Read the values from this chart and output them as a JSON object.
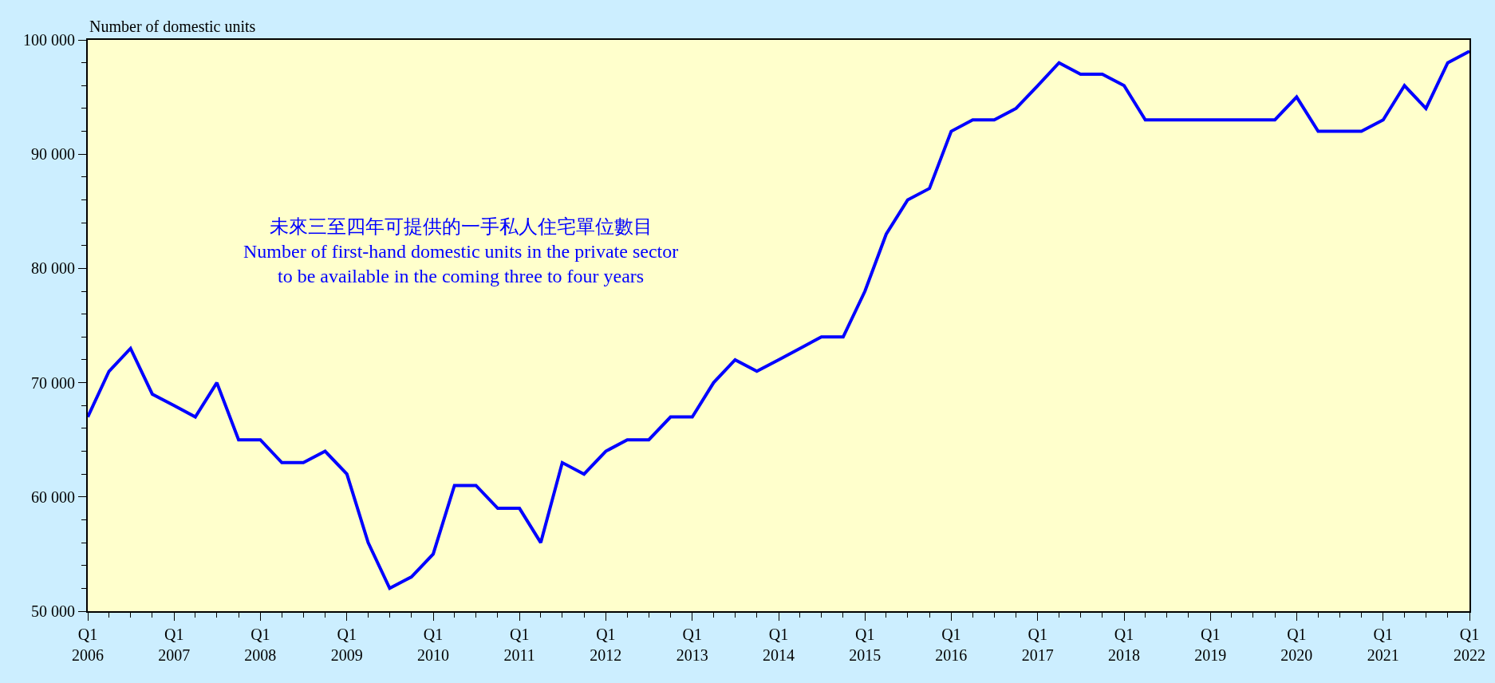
{
  "chart_data": {
    "type": "line",
    "ylabel": "Number of domestic units",
    "annotations": [
      "未來三至四年可提供的一手私人住宅單位數目\nNumber of first-hand domestic units in the private sector\nto be available in the coming three to four years"
    ],
    "x": [
      "2006-01",
      "2006-04",
      "2006-07",
      "2006-10",
      "2007-01",
      "2007-04",
      "2007-07",
      "2007-10",
      "2008-01",
      "2008-04",
      "2008-07",
      "2008-10",
      "2009-01",
      "2009-04",
      "2009-07",
      "2009-10",
      "2010-01",
      "2010-04",
      "2010-07",
      "2010-10",
      "2011-01",
      "2011-04",
      "2011-07",
      "2011-10",
      "2012-01",
      "2012-04",
      "2012-07",
      "2012-10",
      "2013-01",
      "2013-04",
      "2013-07",
      "2013-10",
      "2014-01",
      "2014-04",
      "2014-07",
      "2014-10",
      "2015-01",
      "2015-04",
      "2015-07",
      "2015-10",
      "2016-01",
      "2016-04",
      "2016-07",
      "2016-10",
      "2017-01",
      "2017-04",
      "2017-07",
      "2017-10",
      "2018-01",
      "2018-04",
      "2018-07",
      "2018-10",
      "2019-01",
      "2019-04",
      "2019-07",
      "2019-10",
      "2020-01",
      "2020-04",
      "2020-07",
      "2020-10",
      "2021-01",
      "2021-04",
      "2021-07",
      "2021-10",
      "2022-01"
    ],
    "series": [
      {
        "color": "#0000ff",
        "values": [
          67000,
          71000,
          73000,
          69000,
          68000,
          67000,
          70000,
          65000,
          65000,
          63000,
          63000,
          64000,
          62000,
          56000,
          52000,
          53000,
          55000,
          61000,
          61000,
          59000,
          59000,
          56000,
          63000,
          62000,
          64000,
          65000,
          65000,
          67000,
          67000,
          70000,
          72000,
          71000,
          72000,
          73000,
          74000,
          74000,
          78000,
          83000,
          86000,
          87000,
          92000,
          93000,
          93000,
          94000,
          96000,
          98000,
          97000,
          97000,
          96000,
          93000,
          93000,
          93000,
          93000,
          93000,
          93000,
          93000,
          95000,
          92000,
          92000,
          92000,
          93000,
          96000,
          94000,
          98000,
          99000
        ]
      }
    ],
    "xlim": [
      "2006-01",
      "2022-01"
    ],
    "xticks": [
      {
        "value": "2006-01",
        "label": "Q1\n2006"
      },
      {
        "value": "2007-01",
        "label": "Q1\n2007"
      },
      {
        "value": "2008-01",
        "label": "Q1\n2008"
      },
      {
        "value": "2009-01",
        "label": "Q1\n2009"
      },
      {
        "value": "2010-01",
        "label": "Q1\n2010"
      },
      {
        "value": "2011-01",
        "label": "Q1\n2011"
      },
      {
        "value": "2012-01",
        "label": "Q1\n2012"
      },
      {
        "value": "2013-01",
        "label": "Q1\n2013"
      },
      {
        "value": "2014-01",
        "label": "Q1\n2014"
      },
      {
        "value": "2015-01",
        "label": "Q1\n2015"
      },
      {
        "value": "2016-01",
        "label": "Q1\n2016"
      },
      {
        "value": "2017-01",
        "label": "Q1\n2017"
      },
      {
        "value": "2018-01",
        "label": "Q1\n2018"
      },
      {
        "value": "2019-01",
        "label": "Q1\n2019"
      },
      {
        "value": "2020-01",
        "label": "Q1\n2020"
      },
      {
        "value": "2021-01",
        "label": "Q1\n2021"
      },
      {
        "value": "2022-01",
        "label": "Q1\n2022"
      }
    ],
    "ylim": [
      50000,
      100000
    ],
    "yticks": [
      {
        "value": 50000,
        "label": "50 000"
      },
      {
        "value": 60000,
        "label": "60 000"
      },
      {
        "value": 70000,
        "label": "70 000"
      },
      {
        "value": 80000,
        "label": "80 000"
      },
      {
        "value": 90000,
        "label": "90 000"
      },
      {
        "value": 100000,
        "label": "100 000"
      }
    ],
    "grid": false,
    "legend": false,
    "marker": "none",
    "line_style": "solid"
  }
}
